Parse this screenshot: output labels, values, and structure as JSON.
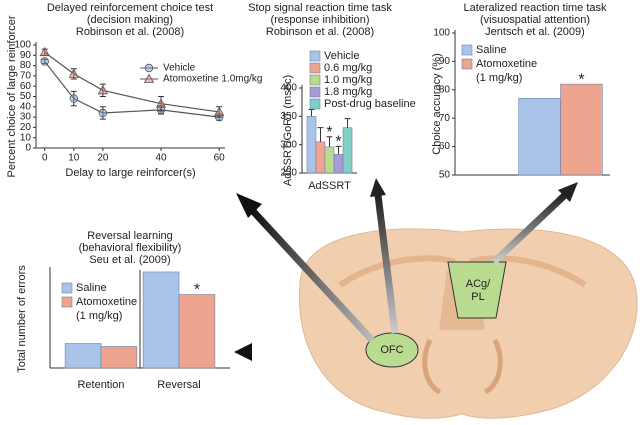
{
  "chart_data": [
    {
      "type": "line",
      "title": "Delayed reinforcement choice test",
      "subtitle": "(decision making)",
      "source": "Robinson et al. (2008)",
      "xlabel": "Delay to large reinforcer(s)",
      "ylabel": "Percent choice of large reinforcer",
      "x": [
        0,
        10,
        20,
        40,
        60
      ],
      "xlim": [
        -3,
        62
      ],
      "xticks": [
        0,
        10,
        20,
        40,
        60
      ],
      "ylim": [
        0,
        100
      ],
      "yticks": [
        0,
        10,
        20,
        30,
        40,
        50,
        60,
        70,
        80,
        90,
        100
      ],
      "series": [
        {
          "name": "Vehicle",
          "color": "#6f9fd8",
          "marker": "circle",
          "values": [
            84,
            48,
            34,
            37,
            30
          ],
          "errors": [
            2,
            7,
            6,
            4,
            3
          ]
        },
        {
          "name": "Atomoxetine 1.0mg/kg",
          "color": "#e07a6a",
          "marker": "triangle",
          "values": [
            93,
            72,
            56,
            43,
            35
          ],
          "errors": [
            3,
            5,
            6,
            7,
            5
          ]
        }
      ]
    },
    {
      "type": "bar",
      "title": "Stop signal reaction time task",
      "subtitle": "(response inhibition)",
      "source": "Robinson et al. (2008)",
      "ylabel": "AdSSRT/GoRT (msec)",
      "categories": [
        "AdSSRT"
      ],
      "ylim": [
        250,
        400
      ],
      "yticks": [
        250,
        300,
        350,
        400
      ],
      "series": [
        {
          "name": "Vehicle",
          "color": "#a9c4e8",
          "values": [
            350
          ],
          "errors": [
            12
          ]
        },
        {
          "name": "0.6 mg/kg",
          "color": "#eea48e",
          "values": [
            305
          ],
          "errors": [
            25
          ]
        },
        {
          "name": "1.0 mg/kg",
          "color": "#b8dc8e",
          "values": [
            296
          ],
          "errors": [
            18
          ],
          "annotations": [
            "*"
          ]
        },
        {
          "name": "1.8 mg/kg",
          "color": "#a89bd6",
          "values": [
            283
          ],
          "errors": [
            14
          ],
          "annotations": [
            "*"
          ]
        },
        {
          "name": "Post-drug baseline",
          "color": "#7fcfc4",
          "values": [
            330
          ],
          "errors": [
            16
          ]
        }
      ]
    },
    {
      "type": "bar",
      "title": "Lateralized reaction time task",
      "subtitle": "(visuospatial attention)",
      "source": "Jentsch et al. (2009)",
      "ylabel": "Choice accuracy (%)",
      "categories": [
        null
      ],
      "ylim": [
        50,
        100
      ],
      "yticks": [
        50,
        60,
        70,
        80,
        90,
        100
      ],
      "series": [
        {
          "name": "Saline",
          "color": "#a9c4e8",
          "values": [
            77
          ]
        },
        {
          "name": "Atomoxetine",
          "dose": "(1 mg/kg)",
          "color": "#eea48e",
          "values": [
            82
          ],
          "annotations": [
            "*"
          ]
        }
      ]
    },
    {
      "type": "bar",
      "title": "Reversal learning",
      "subtitle": "(behavioral flexibility)",
      "source": "Seu et al. (2009)",
      "ylabel": "Total number of errors",
      "categories": [
        "Retention",
        "Reversal"
      ],
      "ylim": [
        0,
        100
      ],
      "series": [
        {
          "name": "Saline",
          "color": "#a9c4e8",
          "values": [
            25,
            98
          ]
        },
        {
          "name": "Atomoxetine",
          "dose": "(1 mg/kg)",
          "color": "#eea48e",
          "values": [
            22,
            75
          ],
          "annotations": [
            null,
            "*"
          ]
        }
      ]
    }
  ],
  "diagram": {
    "regions": [
      "ACg/",
      "PL",
      "OFC"
    ]
  }
}
